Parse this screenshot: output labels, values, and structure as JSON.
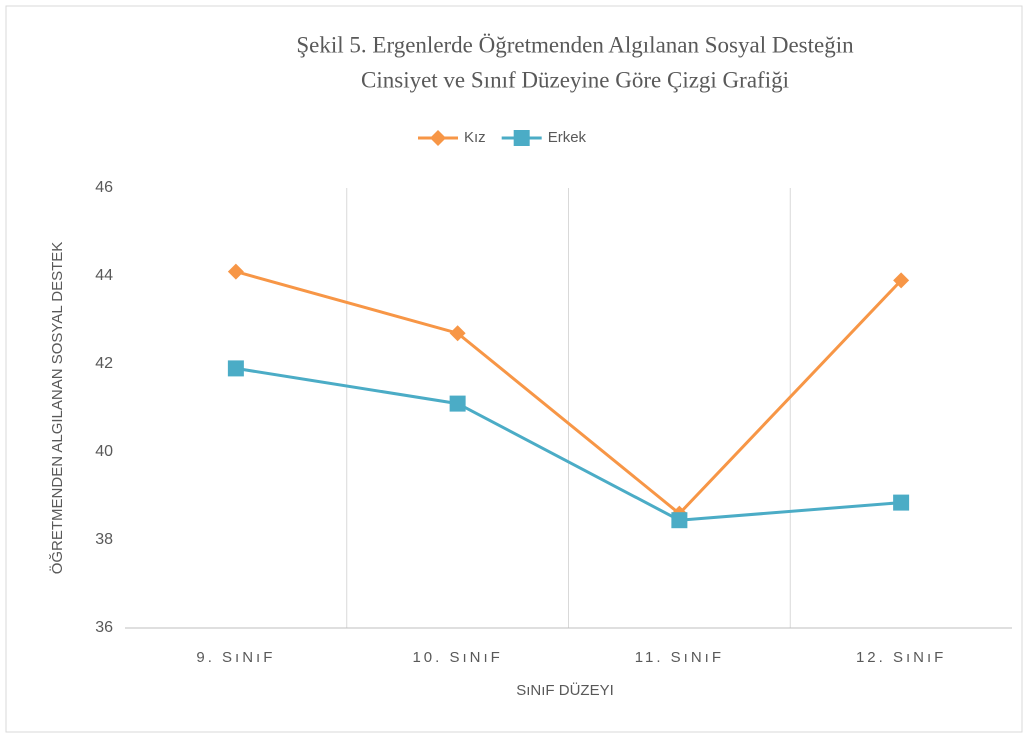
{
  "chart_data": {
    "type": "line",
    "title": [
      "Şekil 5. Ergenlerde Öğretmenden Algılanan Sosyal Desteğin",
      "Cinsiyet ve Sınıf Düzeyine Göre Çizgi Grafiği"
    ],
    "x_label": "SıNıF DÜZEYI",
    "y_label": "ÖĞRETMENDEN ALGILANAN SOSYAL DESTEK",
    "categories": [
      "9. SıNıF",
      "10. SıNıF",
      "11. SıNıF",
      "12. SıNıF"
    ],
    "series": [
      {
        "name": "Kız",
        "color": "#f79646",
        "marker": "diamond",
        "values": [
          44.1,
          42.7,
          38.6,
          43.9
        ]
      },
      {
        "name": "Erkek",
        "color": "#4bacc6",
        "marker": "square",
        "values": [
          41.9,
          41.1,
          38.45,
          38.85
        ]
      }
    ],
    "ylim": [
      36,
      46
    ],
    "yticks": [
      36,
      38,
      40,
      42,
      44,
      46
    ],
    "grid": false,
    "legend": "top"
  }
}
